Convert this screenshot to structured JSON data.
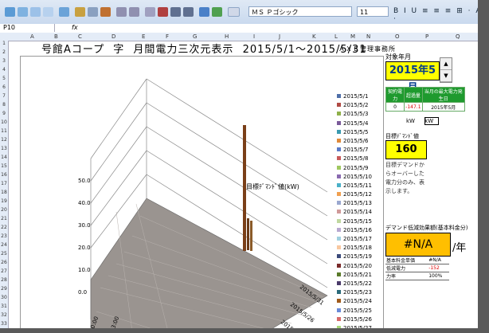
{
  "toolbar": {
    "font_name": "ＭＳ Ｐゴシック",
    "font_size": "11",
    "format_buttons": "B I U ≡ ≡ ≡ ⊞ · A ·"
  },
  "formula_bar": {
    "name_box": "P10",
    "fx": "fx"
  },
  "columns": [
    "A",
    "B",
    "C",
    "D",
    "E",
    "F",
    "G",
    "H",
    "I",
    "J",
    "K",
    "L",
    "M",
    "N",
    "O",
    "P",
    "Q",
    "R"
  ],
  "row_numbers": [
    "1",
    "2",
    "3",
    "4",
    "5",
    "6",
    "7",
    "8",
    "9",
    "10",
    "11",
    "12",
    "13",
    "14",
    "15",
    "16",
    "17",
    "18",
    "19",
    "20",
    "21",
    "22",
    "23",
    "24",
    "25",
    "26",
    "27",
    "28",
    "29",
    "30",
    "31",
    "32",
    "33"
  ],
  "sheet": {
    "title_parts": [
      "号館Aコープ",
      "字",
      "月間電力三次元表示",
      "2015/5/1～2015/5/31"
    ],
    "company": "ＡＸＥ管理事務所"
  },
  "chart": {
    "target_label": "目標ﾃﾞﾏﾝﾄﾞ値(kW)",
    "y_ticks": [
      "50.0",
      "40.0",
      "30.0",
      "20.0",
      "10.0",
      "0.0"
    ],
    "x_ticks": [
      "0:00",
      "3:00"
    ],
    "depth_ticks": [
      "2015/5/31",
      "2015/5/26",
      "2015/5/21"
    ],
    "legend": [
      "2015/5/1",
      "2015/5/2",
      "2015/5/3",
      "2015/5/4",
      "2015/5/5",
      "2015/5/6",
      "2015/5/7",
      "2015/5/8",
      "2015/5/9",
      "2015/5/10",
      "2015/5/11",
      "2015/5/12",
      "2015/5/13",
      "2015/5/14",
      "2015/5/15",
      "2015/5/16",
      "2015/5/17",
      "2015/5/18",
      "2015/5/19",
      "2015/5/20",
      "2015/5/21",
      "2015/5/22",
      "2015/5/23",
      "2015/5/24",
      "2015/5/25",
      "2015/5/26",
      "2015/5/27"
    ],
    "legend_colors": [
      "#4f6fa8",
      "#b04a44",
      "#8fb04a",
      "#7a5a9a",
      "#3a9ab0",
      "#e08a3a",
      "#5a7ac8",
      "#c85a5a",
      "#a0c860",
      "#8a6ab0",
      "#4ab0c8",
      "#f0a050",
      "#9aa8d0",
      "#d09a9a",
      "#c0d8a0",
      "#b8a8d0",
      "#a0d0e0",
      "#f8c8a0",
      "#3a4a7a",
      "#7a2a2a",
      "#5a7a2a",
      "#4a3a6a",
      "#2a6a7a",
      "#a05a1a",
      "#6a8ad8",
      "#d86a6a",
      "#a8d878"
    ]
  },
  "panel": {
    "period_label": "対象年月",
    "period": "2015年5月",
    "spin_up": "▲",
    "spin_down": "▼",
    "stats_headers": [
      "契約電力",
      "超過量",
      "当月の最大電力発生日"
    ],
    "stats_values": [
      "0",
      "-147.1",
      "2015年5月"
    ],
    "kw_labels": [
      "kW",
      "kW"
    ],
    "demand_label": "目標ﾃﾞﾏﾝﾄﾞ値",
    "demand_value": "160",
    "note": "目標デマンドからオーバーした電力分のみ、表示します。",
    "base_label": "デマンド低減効果額(基本料金分)",
    "base_value": "#N/A",
    "per_year": "/年",
    "calc_rows": [
      {
        "label": "基本料金単価",
        "value": "#N/A"
      },
      {
        "label": "低減電力",
        "value": "-152"
      },
      {
        "label": "力率",
        "value": "100%"
      }
    ]
  }
}
